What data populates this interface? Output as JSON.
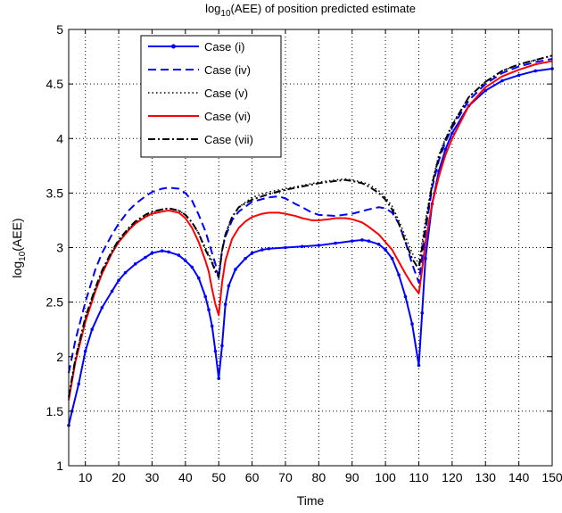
{
  "chart_data": {
    "type": "line",
    "title": "log10(AEE) of position predicted estimate",
    "title_parts": {
      "prefix": "log",
      "sub": "10",
      "suffix": "(AEE) of position predicted estimate"
    },
    "xlabel": "Time",
    "ylabel": "log10(AEE)",
    "ylabel_parts": {
      "prefix": "log",
      "sub": "10",
      "suffix": "(AEE)"
    },
    "xlim": [
      5,
      150
    ],
    "ylim": [
      1,
      5
    ],
    "xticks": [
      10,
      20,
      30,
      40,
      50,
      60,
      70,
      80,
      90,
      100,
      110,
      120,
      130,
      140,
      150
    ],
    "xtick_labels": [
      "10",
      "20",
      "30",
      "40",
      "50",
      "60",
      "70",
      "80",
      "90",
      "100",
      "110",
      "120",
      "130",
      "140",
      "150"
    ],
    "yticks": [
      1,
      1.5,
      2,
      2.5,
      3,
      3.5,
      4,
      4.5,
      5
    ],
    "ytick_labels": [
      "1",
      "1.5",
      "2",
      "2.5",
      "3",
      "3.5",
      "4",
      "4.5",
      "5"
    ],
    "grid": true,
    "legend_position": "top-left",
    "series": [
      {
        "name": "Case (i)",
        "color": "#0000ff",
        "style": "solid-marker",
        "points": [
          [
            5,
            1.37
          ],
          [
            6,
            1.5
          ],
          [
            8,
            1.75
          ],
          [
            10,
            2.05
          ],
          [
            12,
            2.25
          ],
          [
            15,
            2.45
          ],
          [
            18,
            2.6
          ],
          [
            20,
            2.7
          ],
          [
            22,
            2.77
          ],
          [
            25,
            2.85
          ],
          [
            28,
            2.91
          ],
          [
            30,
            2.95
          ],
          [
            33,
            2.97
          ],
          [
            35,
            2.96
          ],
          [
            38,
            2.93
          ],
          [
            40,
            2.88
          ],
          [
            42,
            2.82
          ],
          [
            44,
            2.72
          ],
          [
            46,
            2.55
          ],
          [
            47,
            2.43
          ],
          [
            48,
            2.28
          ],
          [
            49,
            2.05
          ],
          [
            50,
            1.8
          ],
          [
            51,
            2.1
          ],
          [
            52,
            2.48
          ],
          [
            53,
            2.65
          ],
          [
            55,
            2.8
          ],
          [
            58,
            2.9
          ],
          [
            60,
            2.95
          ],
          [
            63,
            2.98
          ],
          [
            65,
            2.99
          ],
          [
            70,
            3.0
          ],
          [
            75,
            3.01
          ],
          [
            80,
            3.02
          ],
          [
            85,
            3.04
          ],
          [
            90,
            3.06
          ],
          [
            93,
            3.07
          ],
          [
            95,
            3.06
          ],
          [
            98,
            3.03
          ],
          [
            100,
            2.98
          ],
          [
            102,
            2.9
          ],
          [
            104,
            2.75
          ],
          [
            106,
            2.55
          ],
          [
            108,
            2.3
          ],
          [
            110,
            1.92
          ],
          [
            111,
            2.4
          ],
          [
            112,
            2.9
          ],
          [
            114,
            3.4
          ],
          [
            116,
            3.7
          ],
          [
            118,
            3.9
          ],
          [
            120,
            4.05
          ],
          [
            125,
            4.3
          ],
          [
            130,
            4.44
          ],
          [
            135,
            4.53
          ],
          [
            140,
            4.58
          ],
          [
            145,
            4.62
          ],
          [
            150,
            4.64
          ]
        ]
      },
      {
        "name": "Case (iv)",
        "color": "#0000ff",
        "style": "dashed",
        "points": [
          [
            5,
            1.85
          ],
          [
            7,
            2.15
          ],
          [
            10,
            2.5
          ],
          [
            13,
            2.8
          ],
          [
            15,
            2.95
          ],
          [
            18,
            3.12
          ],
          [
            20,
            3.22
          ],
          [
            23,
            3.34
          ],
          [
            25,
            3.4
          ],
          [
            28,
            3.47
          ],
          [
            30,
            3.51
          ],
          [
            33,
            3.54
          ],
          [
            35,
            3.55
          ],
          [
            38,
            3.54
          ],
          [
            40,
            3.5
          ],
          [
            42,
            3.43
          ],
          [
            44,
            3.3
          ],
          [
            46,
            3.15
          ],
          [
            48,
            2.95
          ],
          [
            49,
            2.85
          ],
          [
            50,
            2.72
          ],
          [
            51,
            2.98
          ],
          [
            52,
            3.1
          ],
          [
            54,
            3.25
          ],
          [
            56,
            3.33
          ],
          [
            60,
            3.42
          ],
          [
            65,
            3.46
          ],
          [
            68,
            3.47
          ],
          [
            70,
            3.45
          ],
          [
            73,
            3.4
          ],
          [
            75,
            3.37
          ],
          [
            78,
            3.32
          ],
          [
            80,
            3.3
          ],
          [
            85,
            3.29
          ],
          [
            90,
            3.31
          ],
          [
            95,
            3.35
          ],
          [
            98,
            3.37
          ],
          [
            100,
            3.36
          ],
          [
            102,
            3.32
          ],
          [
            104,
            3.22
          ],
          [
            106,
            3.05
          ],
          [
            108,
            2.85
          ],
          [
            110,
            2.68
          ],
          [
            112,
            3.15
          ],
          [
            114,
            3.55
          ],
          [
            116,
            3.8
          ],
          [
            118,
            3.97
          ],
          [
            120,
            4.1
          ],
          [
            125,
            4.35
          ],
          [
            130,
            4.5
          ],
          [
            135,
            4.6
          ],
          [
            140,
            4.66
          ],
          [
            145,
            4.7
          ],
          [
            150,
            4.73
          ]
        ]
      },
      {
        "name": "Case (v)",
        "color": "#000000",
        "style": "dotted",
        "points": [
          [
            5,
            1.62
          ],
          [
            7,
            1.98
          ],
          [
            10,
            2.35
          ],
          [
            13,
            2.62
          ],
          [
            15,
            2.78
          ],
          [
            18,
            2.96
          ],
          [
            20,
            3.06
          ],
          [
            23,
            3.17
          ],
          [
            25,
            3.23
          ],
          [
            28,
            3.29
          ],
          [
            30,
            3.32
          ],
          [
            33,
            3.35
          ],
          [
            35,
            3.36
          ],
          [
            38,
            3.34
          ],
          [
            40,
            3.3
          ],
          [
            42,
            3.23
          ],
          [
            44,
            3.13
          ],
          [
            46,
            3.0
          ],
          [
            48,
            2.88
          ],
          [
            49,
            2.8
          ],
          [
            50,
            2.75
          ],
          [
            51,
            2.98
          ],
          [
            52,
            3.12
          ],
          [
            54,
            3.28
          ],
          [
            56,
            3.37
          ],
          [
            60,
            3.46
          ],
          [
            65,
            3.51
          ],
          [
            70,
            3.54
          ],
          [
            75,
            3.57
          ],
          [
            80,
            3.6
          ],
          [
            85,
            3.62
          ],
          [
            88,
            3.63
          ],
          [
            90,
            3.62
          ],
          [
            93,
            3.6
          ],
          [
            95,
            3.58
          ],
          [
            98,
            3.52
          ],
          [
            100,
            3.46
          ],
          [
            102,
            3.38
          ],
          [
            104,
            3.25
          ],
          [
            106,
            3.1
          ],
          [
            108,
            2.95
          ],
          [
            110,
            2.85
          ],
          [
            112,
            3.25
          ],
          [
            114,
            3.6
          ],
          [
            116,
            3.85
          ],
          [
            118,
            4.0
          ],
          [
            120,
            4.13
          ],
          [
            125,
            4.38
          ],
          [
            130,
            4.52
          ],
          [
            135,
            4.62
          ],
          [
            140,
            4.68
          ],
          [
            145,
            4.72
          ],
          [
            150,
            4.76
          ]
        ]
      },
      {
        "name": "Case (vi)",
        "color": "#ff0000",
        "style": "solid",
        "points": [
          [
            5,
            1.6
          ],
          [
            7,
            1.95
          ],
          [
            10,
            2.32
          ],
          [
            13,
            2.6
          ],
          [
            15,
            2.76
          ],
          [
            18,
            2.95
          ],
          [
            20,
            3.05
          ],
          [
            23,
            3.16
          ],
          [
            25,
            3.22
          ],
          [
            28,
            3.28
          ],
          [
            30,
            3.31
          ],
          [
            33,
            3.33
          ],
          [
            35,
            3.34
          ],
          [
            38,
            3.32
          ],
          [
            40,
            3.27
          ],
          [
            42,
            3.18
          ],
          [
            44,
            3.05
          ],
          [
            46,
            2.88
          ],
          [
            47,
            2.78
          ],
          [
            48,
            2.62
          ],
          [
            49,
            2.48
          ],
          [
            50,
            2.38
          ],
          [
            51,
            2.68
          ],
          [
            52,
            2.88
          ],
          [
            54,
            3.08
          ],
          [
            56,
            3.18
          ],
          [
            58,
            3.24
          ],
          [
            60,
            3.28
          ],
          [
            63,
            3.31
          ],
          [
            65,
            3.32
          ],
          [
            68,
            3.32
          ],
          [
            70,
            3.31
          ],
          [
            73,
            3.29
          ],
          [
            75,
            3.27
          ],
          [
            78,
            3.25
          ],
          [
            80,
            3.25
          ],
          [
            83,
            3.26
          ],
          [
            85,
            3.27
          ],
          [
            88,
            3.27
          ],
          [
            90,
            3.26
          ],
          [
            93,
            3.23
          ],
          [
            95,
            3.19
          ],
          [
            98,
            3.12
          ],
          [
            100,
            3.05
          ],
          [
            102,
            2.98
          ],
          [
            104,
            2.87
          ],
          [
            106,
            2.76
          ],
          [
            108,
            2.66
          ],
          [
            110,
            2.58
          ],
          [
            111,
            2.8
          ],
          [
            112,
            3.05
          ],
          [
            114,
            3.4
          ],
          [
            116,
            3.65
          ],
          [
            118,
            3.85
          ],
          [
            120,
            4.0
          ],
          [
            125,
            4.3
          ],
          [
            130,
            4.47
          ],
          [
            135,
            4.57
          ],
          [
            140,
            4.63
          ],
          [
            145,
            4.68
          ],
          [
            150,
            4.71
          ]
        ]
      },
      {
        "name": "Case (vii)",
        "color": "#000000",
        "style": "dashdot",
        "points": [
          [
            5,
            1.63
          ],
          [
            7,
            1.98
          ],
          [
            10,
            2.36
          ],
          [
            13,
            2.63
          ],
          [
            15,
            2.79
          ],
          [
            18,
            2.97
          ],
          [
            20,
            3.07
          ],
          [
            23,
            3.18
          ],
          [
            25,
            3.24
          ],
          [
            28,
            3.3
          ],
          [
            30,
            3.33
          ],
          [
            33,
            3.35
          ],
          [
            35,
            3.36
          ],
          [
            38,
            3.34
          ],
          [
            40,
            3.3
          ],
          [
            42,
            3.23
          ],
          [
            44,
            3.13
          ],
          [
            46,
            2.98
          ],
          [
            48,
            2.86
          ],
          [
            49,
            2.78
          ],
          [
            50,
            2.73
          ],
          [
            51,
            2.97
          ],
          [
            52,
            3.12
          ],
          [
            54,
            3.28
          ],
          [
            56,
            3.37
          ],
          [
            60,
            3.44
          ],
          [
            65,
            3.49
          ],
          [
            70,
            3.53
          ],
          [
            75,
            3.56
          ],
          [
            80,
            3.59
          ],
          [
            85,
            3.61
          ],
          [
            88,
            3.62
          ],
          [
            90,
            3.61
          ],
          [
            93,
            3.59
          ],
          [
            95,
            3.56
          ],
          [
            98,
            3.5
          ],
          [
            100,
            3.44
          ],
          [
            102,
            3.35
          ],
          [
            104,
            3.22
          ],
          [
            106,
            3.05
          ],
          [
            108,
            2.9
          ],
          [
            110,
            2.8
          ],
          [
            112,
            3.2
          ],
          [
            114,
            3.58
          ],
          [
            116,
            3.83
          ],
          [
            118,
            3.99
          ],
          [
            120,
            4.12
          ],
          [
            125,
            4.38
          ],
          [
            130,
            4.52
          ],
          [
            135,
            4.62
          ],
          [
            140,
            4.68
          ],
          [
            145,
            4.72
          ],
          [
            150,
            4.76
          ]
        ]
      }
    ]
  }
}
